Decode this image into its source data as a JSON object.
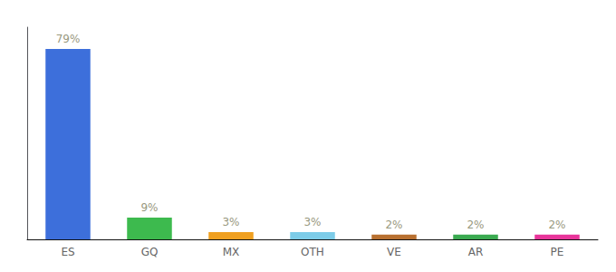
{
  "chart_data": {
    "type": "bar",
    "categories": [
      "ES",
      "GQ",
      "MX",
      "OTH",
      "VE",
      "AR",
      "PE"
    ],
    "values": [
      79,
      9,
      3,
      3,
      2,
      2,
      2
    ],
    "value_labels": [
      "79%",
      "9%",
      "3%",
      "3%",
      "2%",
      "2%",
      "2%"
    ],
    "colors": [
      "#3d6fdb",
      "#3dba4e",
      "#f0a020",
      "#7dcce8",
      "#b87030",
      "#3aaa50",
      "#e8359a"
    ],
    "ylim": [
      0,
      88
    ],
    "grid": false,
    "data_labels": true,
    "tick_labels": "x"
  }
}
